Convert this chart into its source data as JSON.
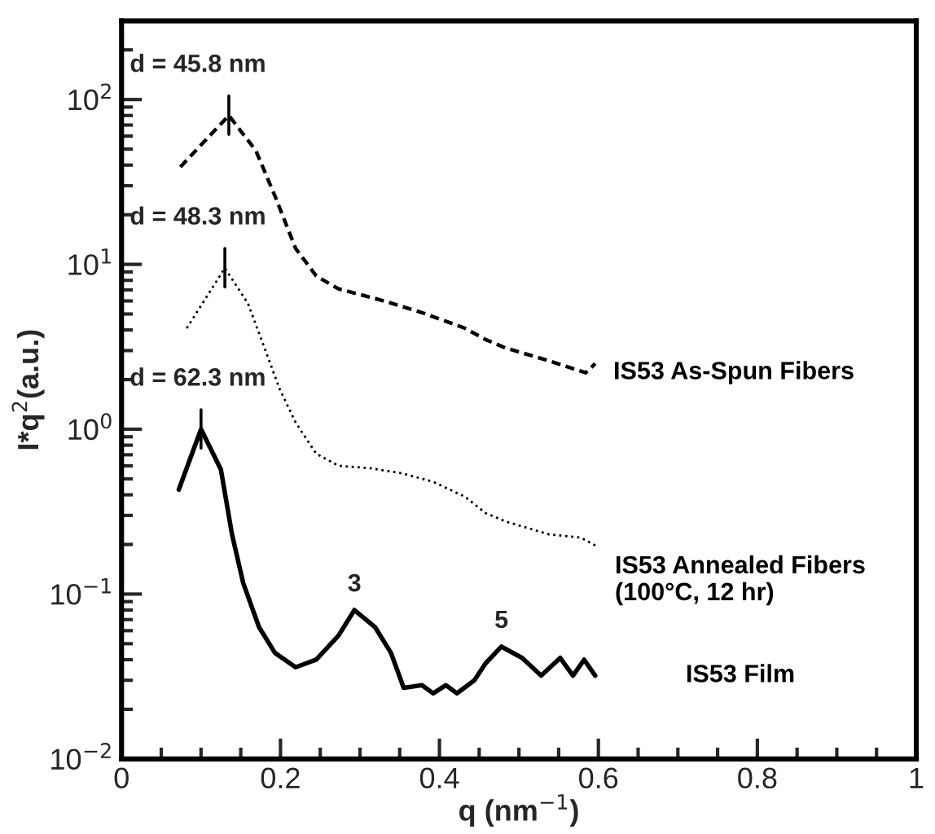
{
  "chart_data": {
    "type": "line",
    "xlabel": "q (nm$^{−1}$)",
    "ylabel": "I*q$^{2}$(a.u.)",
    "log": "y",
    "xlim": [
      0,
      1
    ],
    "xticks": [
      0,
      0.2,
      0.4,
      0.6,
      0.8,
      1
    ],
    "ylim": [
      0.01,
      300
    ],
    "yticks": [
      {
        "value": 0.01,
        "label": "10$^{−2}$"
      },
      {
        "value": 0.1,
        "label": "10$^{−1}$"
      },
      {
        "value": 1,
        "label": "10$^{0}$"
      },
      {
        "value": 10,
        "label": "10$^{1}$"
      },
      {
        "value": 100,
        "label": "10$^{2}$"
      }
    ],
    "grid": false,
    "legend": false,
    "series": [
      {
        "name": "IS53 As-Spun Fibers",
        "color": "#000000",
        "line_style": "dashed",
        "x": [
          0.074,
          0.135,
          0.169,
          0.193,
          0.219,
          0.245,
          0.273,
          0.325,
          0.378,
          0.432,
          0.458,
          0.484,
          0.538,
          0.584,
          0.596
        ],
        "values": [
          39,
          80,
          49,
          26,
          12.5,
          8.5,
          7.1,
          6.1,
          5.1,
          4.1,
          3.5,
          3.1,
          2.6,
          2.2,
          2.5
        ]
      },
      {
        "name": "IS53 Annealed Fibers\n(100°C, 12 hr)",
        "color": "#000000",
        "line_style": "dotted",
        "x": [
          0.082,
          0.13,
          0.159,
          0.179,
          0.199,
          0.219,
          0.245,
          0.273,
          0.313,
          0.353,
          0.392,
          0.432,
          0.458,
          0.484,
          0.538,
          0.578,
          0.598
        ],
        "values": [
          4.1,
          9.5,
          5.8,
          3.2,
          1.75,
          1.1,
          0.71,
          0.6,
          0.58,
          0.54,
          0.48,
          0.39,
          0.31,
          0.275,
          0.23,
          0.22,
          0.195
        ]
      },
      {
        "name": "IS53 Film",
        "color": "#000000",
        "line_style": "solid",
        "x": [
          0.072,
          0.1,
          0.125,
          0.139,
          0.153,
          0.173,
          0.193,
          0.219,
          0.245,
          0.273,
          0.293,
          0.319,
          0.339,
          0.355,
          0.378,
          0.392,
          0.408,
          0.422,
          0.444,
          0.458,
          0.478,
          0.504,
          0.528,
          0.552,
          0.568,
          0.582,
          0.596
        ],
        "values": [
          0.43,
          1.0,
          0.57,
          0.23,
          0.117,
          0.063,
          0.044,
          0.036,
          0.04,
          0.056,
          0.08,
          0.063,
          0.044,
          0.027,
          0.028,
          0.025,
          0.028,
          0.025,
          0.03,
          0.038,
          0.048,
          0.041,
          0.032,
          0.041,
          0.032,
          0.04,
          0.032
        ]
      }
    ],
    "annotations": [
      {
        "text": "d = 45.8 nm",
        "x": 0.135,
        "y": 80
      },
      {
        "text": "d = 48.3 nm",
        "x": 0.13,
        "y": 9.5
      },
      {
        "text": "d = 62.3 nm",
        "x": 0.1,
        "y": 1.0
      },
      {
        "text": "3",
        "x": 0.293,
        "y": 0.08
      },
      {
        "text": "5",
        "x": 0.478,
        "y": 0.048
      }
    ]
  }
}
